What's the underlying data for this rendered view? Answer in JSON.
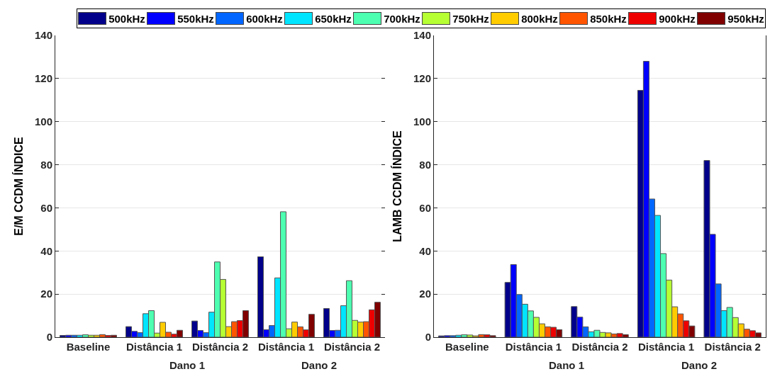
{
  "chart_data": [
    {
      "type": "bar",
      "ylabel": "E/M CCDM ÍNDICE",
      "categories": [
        "Baseline",
        "Distância 1",
        "Distância 2",
        "Distância 1",
        "Distância 2"
      ],
      "annotations": [
        "Dano 1",
        "Dano 2"
      ],
      "ylim": [
        0,
        140
      ],
      "yticks": [
        0,
        20,
        40,
        60,
        80,
        100,
        120,
        140
      ],
      "grid": "y",
      "legend": "top",
      "series": [
        {
          "name": "500kHz",
          "color": "#00008b",
          "values": [
            0.8,
            4.9,
            7.5,
            37.3,
            13.3
          ]
        },
        {
          "name": "550kHz",
          "color": "#0000ff",
          "values": [
            0.9,
            2.7,
            3.1,
            3.5,
            3.1
          ]
        },
        {
          "name": "600kHz",
          "color": "#0066ff",
          "values": [
            0.9,
            2.1,
            2.1,
            5.4,
            3.2
          ]
        },
        {
          "name": "650kHz",
          "color": "#00e5ff",
          "values": [
            0.9,
            10.9,
            11.6,
            27.5,
            14.6
          ]
        },
        {
          "name": "700kHz",
          "color": "#4dffb0",
          "values": [
            1.1,
            12.3,
            34.9,
            58.2,
            26.2
          ]
        },
        {
          "name": "750kHz",
          "color": "#b5ff33",
          "values": [
            0.9,
            1.9,
            26.8,
            3.9,
            7.8
          ]
        },
        {
          "name": "800kHz",
          "color": "#ffcc00",
          "values": [
            0.9,
            6.9,
            4.9,
            7.0,
            7.0
          ]
        },
        {
          "name": "850kHz",
          "color": "#ff5500",
          "values": [
            1.2,
            2.3,
            7.2,
            4.8,
            7.2
          ]
        },
        {
          "name": "900kHz",
          "color": "#ee0000",
          "values": [
            0.8,
            1.4,
            7.7,
            3.4,
            12.7
          ]
        },
        {
          "name": "950kHz",
          "color": "#800000",
          "values": [
            0.9,
            3.2,
            12.3,
            10.6,
            16.2
          ]
        }
      ]
    },
    {
      "type": "bar",
      "ylabel": "LAMB CCDM ÍNDICE",
      "categories": [
        "Baseline",
        "Distância 1",
        "Distância 2",
        "Distância 1",
        "Distância 2"
      ],
      "annotations": [
        "Dano 1",
        "Dano 2"
      ],
      "ylim": [
        0,
        140
      ],
      "yticks": [
        0,
        20,
        40,
        60,
        80,
        100,
        120,
        140
      ],
      "grid": "y",
      "series": [
        {
          "color": "#00008b",
          "values": [
            0.6,
            25.4,
            14.2,
            114.5,
            82
          ]
        },
        {
          "color": "#0000ff",
          "values": [
            0.7,
            33.7,
            9.3,
            128,
            47.7
          ]
        },
        {
          "color": "#0066ff",
          "values": [
            0.7,
            19.8,
            4.8,
            64.1,
            24.7
          ]
        },
        {
          "color": "#00e5ff",
          "values": [
            0.9,
            15.3,
            2.5,
            56.5,
            12.3
          ]
        },
        {
          "color": "#4dffb0",
          "values": [
            1.1,
            12.2,
            3.2,
            38.8,
            13.8
          ]
        },
        {
          "color": "#b5ff33",
          "values": [
            1.0,
            9.2,
            2.2,
            26.5,
            9.1
          ]
        },
        {
          "color": "#ffcc00",
          "values": [
            0.6,
            6.2,
            2.0,
            14.1,
            6.2
          ]
        },
        {
          "color": "#ff5500",
          "values": [
            1.2,
            4.8,
            1.5,
            10.8,
            3.7
          ]
        },
        {
          "color": "#ee0000",
          "values": [
            1.1,
            4.6,
            1.7,
            7.6,
            3.0
          ]
        },
        {
          "color": "#800000",
          "values": [
            0.7,
            3.5,
            1.2,
            5.2,
            2.0
          ]
        }
      ]
    }
  ]
}
